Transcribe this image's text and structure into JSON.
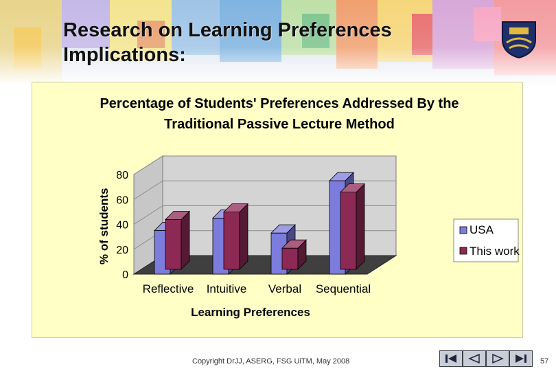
{
  "slide": {
    "title_line1": "Research on Learning Preferences",
    "title_line2": "Implications:"
  },
  "colors": {
    "usa": "#7b7cdc",
    "this_work": "#8c2a55",
    "panel": "#ffffc6"
  },
  "chart_data": {
    "type": "bar",
    "title_line1": "Percentage of Students' Preferences Addressed By the",
    "title_line2": "Traditional Passive Lecture Method",
    "xlabel": "Learning Preferences",
    "ylabel": "% of students",
    "categories": [
      "Reflective",
      "Intuitive",
      "Verbal",
      "Sequential"
    ],
    "series": [
      {
        "name": "USA",
        "values": [
          35,
          45,
          33,
          75
        ]
      },
      {
        "name": "This work",
        "values": [
          40,
          46,
          17,
          62
        ]
      }
    ],
    "ylim": [
      0,
      80
    ],
    "yticks": [
      "0",
      "20",
      "40",
      "60",
      "80"
    ],
    "legend_position": "right",
    "style": "3d-clustered-column"
  },
  "footer": {
    "copyright": "Copyright DrJJ, ASERG, FSG UiTM, May 2008",
    "page_number": "57"
  },
  "nav_icons": [
    "first-slide-icon",
    "previous-slide-icon",
    "next-slide-icon",
    "last-slide-icon"
  ]
}
